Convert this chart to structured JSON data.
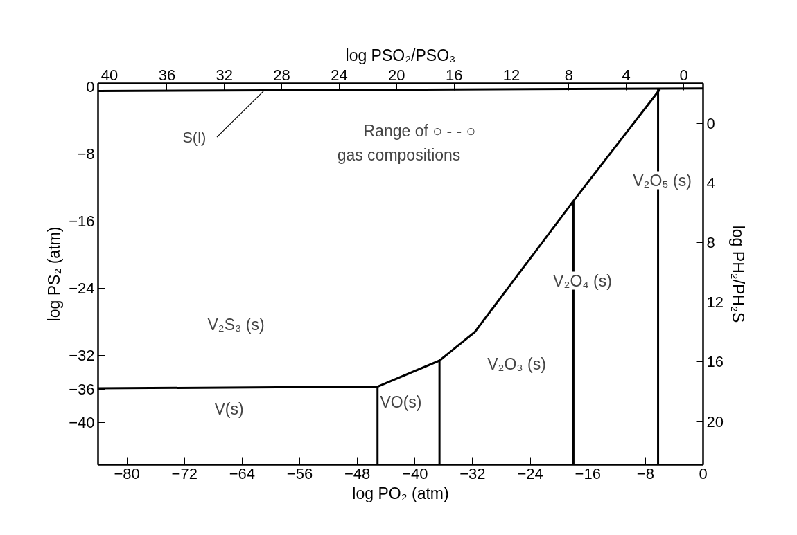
{
  "chart_data": {
    "type": "line",
    "xlabel": "log PO₂ (atm)",
    "ylabel": "log PS₂ (atm)",
    "x2label": "log PSO₂/PSO₃",
    "y2label": "log PH₂/PH₂S",
    "xlim": [
      -84,
      0
    ],
    "xticks": [
      -80,
      -72,
      -64,
      -56,
      -48,
      -40,
      -32,
      -24,
      -16,
      -8,
      0
    ],
    "ylim": [
      -45,
      0.4
    ],
    "yticks": [
      0,
      -8,
      -16,
      -24,
      -32,
      -36,
      -40
    ],
    "x2lim": [
      40.8,
      -1.35
    ],
    "x2ticks": [
      40,
      36,
      32,
      28,
      24,
      20,
      16,
      12,
      8,
      4,
      0
    ],
    "y2lim": [
      22.9,
      -2.7
    ],
    "y2ticks": [
      0,
      4,
      8,
      12,
      16,
      20
    ],
    "grid": false,
    "line_style": "solid",
    "series": [
      {
        "color": "#000000",
        "x": [
          -84,
          0
        ],
        "values": [
          -0.5,
          -0.2
        ]
      },
      {
        "color": "#000000",
        "x": [
          -84,
          -45.2,
          -36.6,
          -31.7,
          -18.0,
          -6.0
        ],
        "values": [
          -35.9,
          -35.7,
          -32.6,
          -29.2,
          -13.6,
          -0.3
        ]
      },
      {
        "color": "#000000",
        "x": [
          -45.2,
          -45.2
        ],
        "values": [
          -35.7,
          -45
        ]
      },
      {
        "color": "#000000",
        "x": [
          -36.6,
          -36.6
        ],
        "values": [
          -32.6,
          -45
        ]
      },
      {
        "color": "#000000",
        "x": [
          -18.0,
          -18.0
        ],
        "values": [
          -13.6,
          -45
        ]
      },
      {
        "color": "#000000",
        "x": [
          -6.25,
          -6.25
        ],
        "values": [
          -0.3,
          -45
        ]
      }
    ],
    "annotations": [
      {
        "text": "S(l)",
        "x": -61,
        "y": -0.5
      },
      "Range of ○ - - ○",
      "gas compositions",
      "V₂S₃ (s)",
      "V(s)",
      "VO(s)",
      "V₂O₃ (s)",
      "V₂O₄ (s)",
      "V₂O₅ (s)"
    ]
  }
}
